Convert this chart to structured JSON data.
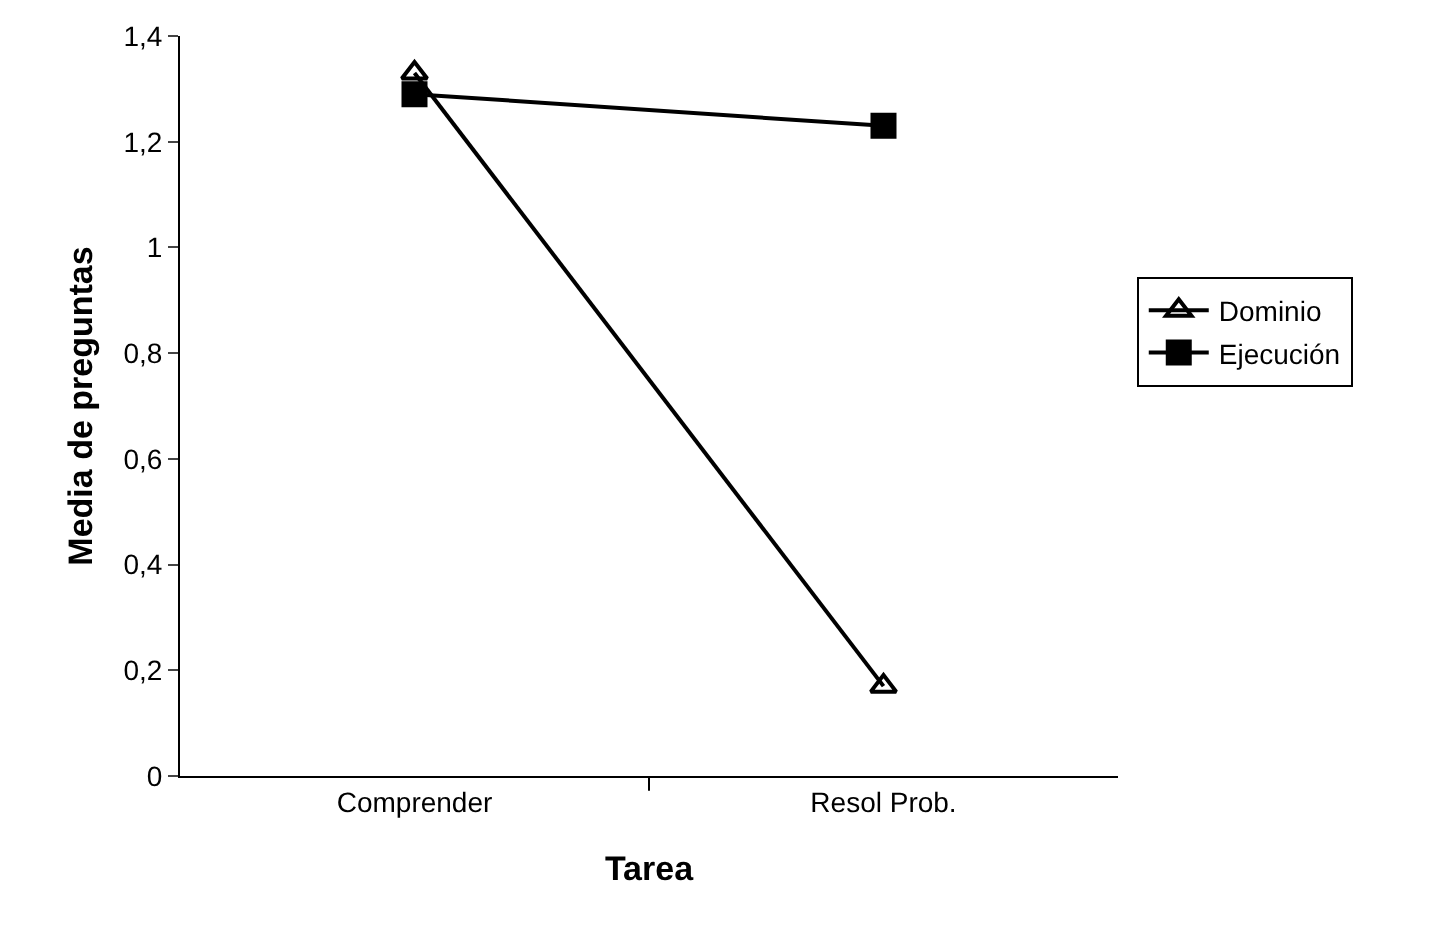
{
  "chart_data": {
    "type": "line",
    "xlabel": "Tarea",
    "ylabel": "Media de preguntas",
    "categories": [
      "Comprender",
      "Resol Prob."
    ],
    "series": [
      {
        "name": "Dominio",
        "color": "#000000",
        "marker": "triangle",
        "values": [
          1.33,
          0.17
        ]
      },
      {
        "name": "Ejecución",
        "color": "#000000",
        "marker": "square",
        "values": [
          1.29,
          1.23
        ]
      }
    ],
    "ylim": [
      0,
      1.4
    ],
    "yticks": [
      0,
      {
        "value": 0.2,
        "label": "0,2"
      },
      {
        "value": 0.4,
        "label": "0,4"
      },
      {
        "value": 0.6,
        "label": "0,6"
      },
      {
        "value": 0.8,
        "label": "0,8"
      },
      1,
      {
        "value": 1.2,
        "label": "1,2"
      },
      {
        "value": 1.4,
        "label": "1,4"
      }
    ],
    "grid": false,
    "legend": "right",
    "line_style": "solid"
  }
}
